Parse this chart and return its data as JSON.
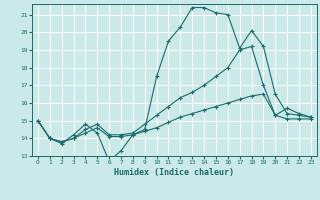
{
  "title": "",
  "xlabel": "Humidex (Indice chaleur)",
  "bg_color": "#cce9e9",
  "grid_color": "#ffffff",
  "line_color": "#1a6b6b",
  "xlim": [
    -0.5,
    23.5
  ],
  "ylim": [
    13,
    21.6
  ],
  "yticks": [
    13,
    14,
    15,
    16,
    17,
    18,
    19,
    20,
    21
  ],
  "xticks": [
    0,
    1,
    2,
    3,
    4,
    5,
    6,
    7,
    8,
    9,
    10,
    11,
    12,
    13,
    14,
    15,
    16,
    17,
    18,
    19,
    20,
    21,
    22,
    23
  ],
  "line1_x": [
    0,
    1,
    2,
    3,
    4,
    5,
    6,
    7,
    8,
    9,
    10,
    11,
    12,
    13,
    14,
    15,
    16,
    17,
    18,
    19,
    20,
    21,
    22,
    23
  ],
  "line1_y": [
    15.0,
    14.0,
    13.7,
    14.2,
    14.8,
    14.3,
    12.7,
    13.3,
    14.2,
    14.5,
    17.5,
    19.5,
    20.3,
    21.4,
    21.4,
    21.1,
    21.0,
    19.1,
    20.1,
    19.2,
    16.5,
    15.4,
    15.3,
    15.2
  ],
  "line2_x": [
    0,
    1,
    2,
    3,
    4,
    5,
    6,
    7,
    8,
    9,
    10,
    11,
    12,
    13,
    14,
    15,
    16,
    17,
    18,
    19,
    20,
    21,
    22,
    23
  ],
  "line2_y": [
    15.0,
    14.0,
    13.8,
    14.0,
    14.5,
    14.8,
    14.2,
    14.2,
    14.3,
    14.8,
    15.3,
    15.8,
    16.3,
    16.6,
    17.0,
    17.5,
    18.0,
    19.0,
    19.2,
    17.0,
    15.3,
    15.7,
    15.4,
    15.2
  ],
  "line3_x": [
    0,
    1,
    2,
    3,
    4,
    5,
    6,
    7,
    8,
    9,
    10,
    11,
    12,
    13,
    14,
    15,
    16,
    17,
    18,
    19,
    20,
    21,
    22,
    23
  ],
  "line3_y": [
    15.0,
    14.0,
    13.8,
    14.0,
    14.3,
    14.6,
    14.1,
    14.1,
    14.2,
    14.4,
    14.6,
    14.9,
    15.2,
    15.4,
    15.6,
    15.8,
    16.0,
    16.2,
    16.4,
    16.5,
    15.3,
    15.1,
    15.1,
    15.1
  ]
}
